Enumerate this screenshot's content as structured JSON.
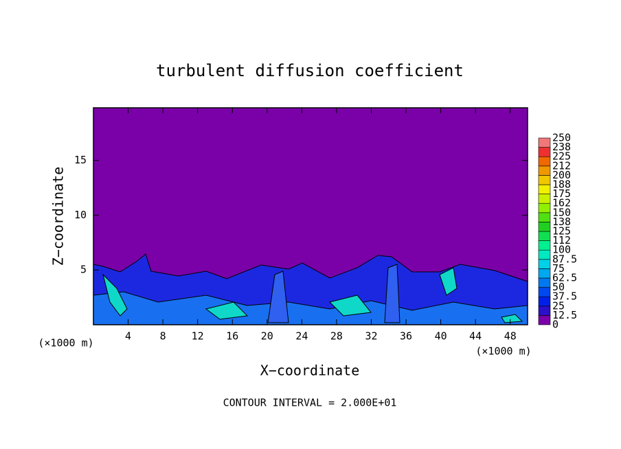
{
  "chart_data": {
    "type": "contour",
    "title": "turbulent diffusion coefficient",
    "x_label": "X−coordinate",
    "y_label": "Z−coordinate",
    "x_unit": "(×1000 m)",
    "annotation": "CONTOUR INTERVAL = 2.000E+01",
    "xlim": [
      0,
      50
    ],
    "xticks": [
      4,
      8,
      12,
      16,
      20,
      24,
      28,
      32,
      36,
      40,
      44,
      48
    ],
    "ylim": [
      0,
      19.8
    ],
    "yticks": [
      5,
      10,
      15
    ],
    "colorbar": {
      "ticks": [
        0,
        12.5,
        25,
        37.5,
        50,
        62.5,
        75,
        87.5,
        100,
        {
          "value": 112.5,
          "label": "112"
        },
        125,
        {
          "value": 137.5,
          "label": "138"
        },
        150,
        {
          "value": 162.5,
          "label": "162"
        },
        175,
        {
          "value": 187.5,
          "label": "188"
        },
        200,
        {
          "value": 212.5,
          "label": "212"
        },
        225,
        {
          "value": 237.5,
          "label": "238"
        },
        250
      ],
      "colors": [
        "#7a00a8",
        "#2a10c8",
        "#0020e8",
        "#0048f0",
        "#0078f0",
        "#00a8f0",
        "#00d0e8",
        "#00e8c0",
        "#00f090",
        "#10e050",
        "#20d020",
        "#50e010",
        "#90f000",
        "#c8f000",
        "#f0f000",
        "#f0c800",
        "#f09800",
        "#f06800",
        "#f03030",
        "#f07878"
      ]
    }
  }
}
